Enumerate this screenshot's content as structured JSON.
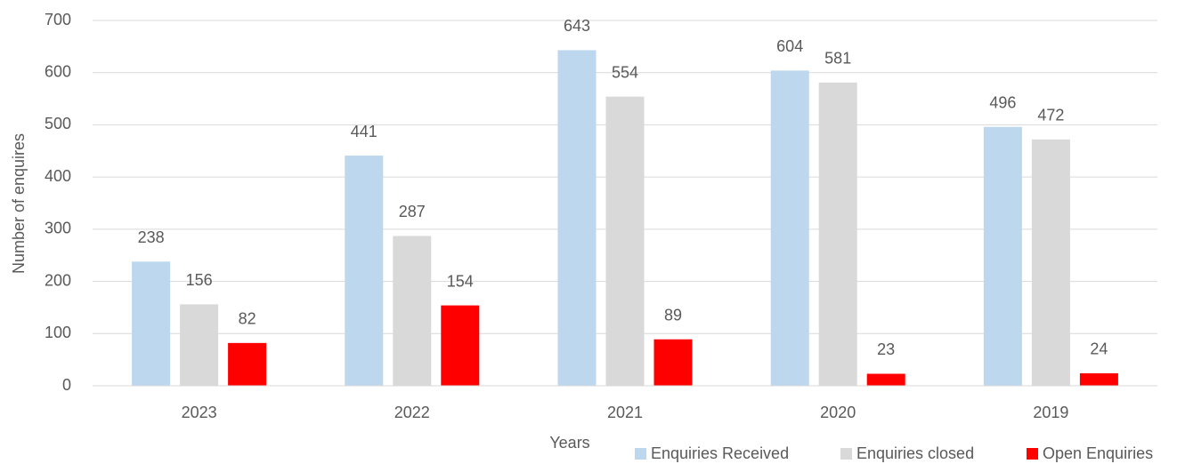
{
  "chart_data": {
    "type": "bar",
    "categories": [
      "2023",
      "2022",
      "2021",
      "2020",
      "2019"
    ],
    "series": [
      {
        "name": "Enquiries Received",
        "color": "#bdd7ee",
        "values": [
          238,
          441,
          643,
          604,
          496
        ]
      },
      {
        "name": "Enquiries closed",
        "color": "#d9d9d9",
        "values": [
          156,
          287,
          554,
          581,
          472
        ]
      },
      {
        "name": "Open Enquiries",
        "color": "#ff0000",
        "values": [
          82,
          154,
          89,
          23,
          24
        ]
      }
    ],
    "x_label": "Years",
    "y_label": "Number of enquires",
    "ylim": [
      0,
      700
    ],
    "yticks": [
      0,
      100,
      200,
      300,
      400,
      500,
      600,
      700
    ],
    "grid": true,
    "legend": "bottom-right"
  }
}
